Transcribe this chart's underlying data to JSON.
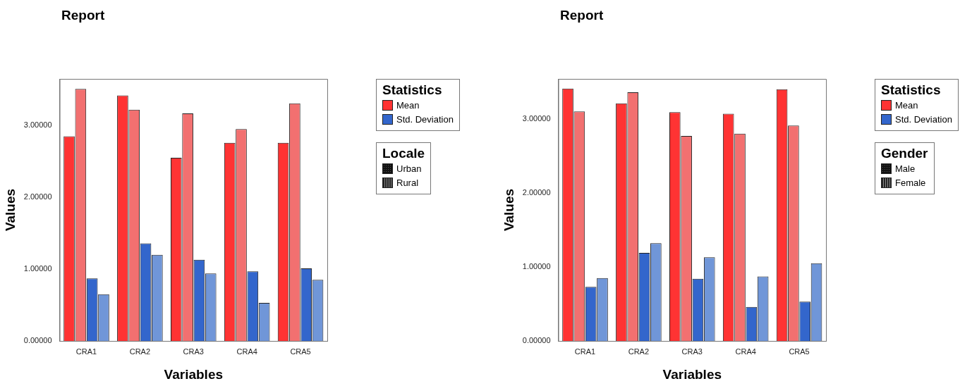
{
  "chart_data": [
    {
      "type": "bar",
      "title": "Report",
      "xlabel": "Variables",
      "ylabel": "Values",
      "legend_title": "Statistics",
      "legend": "right",
      "grid": false,
      "categories": [
        "CRA1",
        "CRA2",
        "CRA3",
        "CRA4",
        "CRA5"
      ],
      "ylim": [
        0,
        3.65
      ],
      "yticks": [
        {
          "value": 0,
          "label": "0.00000"
        },
        {
          "value": 1,
          "label": "1.00000"
        },
        {
          "value": 2,
          "label": "2.00000"
        },
        {
          "value": 3,
          "label": "3.00000"
        }
      ],
      "series": [
        {
          "name": "Mean",
          "color": "#ff3333",
          "values": [
            2.85,
            3.42,
            2.55,
            2.76,
            2.76
          ]
        },
        {
          "color": "#f27070",
          "values": [
            3.51,
            3.22,
            3.17,
            2.95,
            3.31
          ]
        },
        {
          "name": "Std. Deviation",
          "color": "#3366cc",
          "values": [
            0.87,
            1.36,
            1.13,
            0.97,
            1.01
          ]
        },
        {
          "color": "#7096d8",
          "values": [
            0.65,
            1.2,
            0.94,
            0.53,
            0.85
          ]
        }
      ],
      "annotations": [
        "Locale",
        "Urban",
        "Rural"
      ]
    },
    {
      "type": "bar",
      "title": "Report",
      "xlabel": "Variables",
      "ylabel": "Values",
      "legend_title": "Statistics",
      "legend": "right",
      "grid": false,
      "categories": [
        "CRA1",
        "CRA2",
        "CRA3",
        "CRA4",
        "CRA5"
      ],
      "ylim": [
        0,
        3.54
      ],
      "yticks": [
        {
          "value": 0,
          "label": "0.00000"
        },
        {
          "value": 1,
          "label": "1.00000"
        },
        {
          "value": 2,
          "label": "2.00000"
        },
        {
          "value": 3,
          "label": "3.00000"
        }
      ],
      "series": [
        {
          "name": "Mean",
          "color": "#ff3333",
          "values": [
            3.41,
            3.21,
            3.09,
            3.07,
            3.4
          ]
        },
        {
          "color": "#f27070",
          "values": [
            3.1,
            3.36,
            2.77,
            2.8,
            2.91
          ]
        },
        {
          "name": "Std. Deviation",
          "color": "#3366cc",
          "values": [
            0.73,
            1.19,
            0.84,
            0.46,
            0.53
          ]
        },
        {
          "color": "#7096d8",
          "values": [
            0.85,
            1.32,
            1.13,
            0.87,
            1.05
          ]
        }
      ],
      "annotations": [
        "Gender",
        "Male",
        "Female"
      ]
    }
  ]
}
